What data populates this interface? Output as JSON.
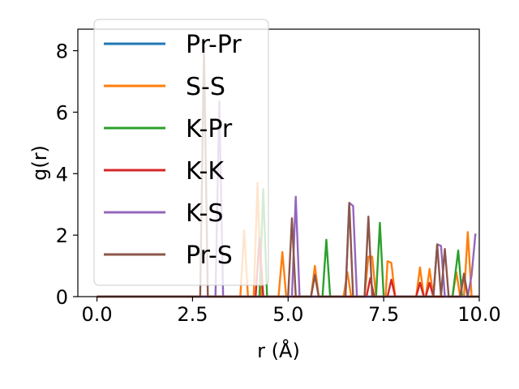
{
  "chart_data": {
    "type": "line",
    "xlabel": "r (Å)",
    "ylabel": "g(r)",
    "xlim": [
      -0.5,
      10.0
    ],
    "ylim": [
      0,
      8.7
    ],
    "xticks": [
      0.0,
      2.5,
      5.0,
      7.5,
      10.0
    ],
    "xtick_labels": [
      "0.0",
      "2.5",
      "5.0",
      "7.5",
      "10.0"
    ],
    "yticks": [
      0,
      2,
      4,
      6,
      8
    ],
    "ytick_labels": [
      "0",
      "2",
      "4",
      "6",
      "8"
    ],
    "grid": false,
    "legend_position": "upper-left",
    "series": [
      {
        "name": "Pr-Pr",
        "color": "#1f77b4",
        "x": [
          0.0,
          10.0
        ],
        "y": [
          0,
          0
        ]
      },
      {
        "name": "S-S",
        "color": "#ff7f0e",
        "x": [
          0.0,
          3.75,
          3.85,
          3.95,
          4.1,
          4.2,
          4.3,
          4.4,
          4.75,
          4.85,
          4.95,
          5.6,
          5.7,
          5.8,
          6.45,
          6.55,
          6.65,
          7.0,
          7.1,
          7.2,
          7.3,
          7.55,
          7.6,
          7.7,
          7.8,
          8.35,
          8.45,
          8.55,
          8.6,
          8.7,
          8.8,
          9.3,
          9.4,
          9.5,
          9.6,
          9.7,
          9.8,
          9.9
        ],
        "y": [
          0,
          0,
          2.15,
          0,
          0,
          3.7,
          0,
          0,
          0,
          1.45,
          0,
          0,
          1.0,
          0,
          0,
          0.8,
          0,
          0,
          1.3,
          1.3,
          0,
          0,
          1.15,
          1.1,
          0,
          0,
          0.95,
          0,
          0,
          0.9,
          0,
          0,
          0.8,
          0,
          0,
          2.1,
          0,
          0
        ]
      },
      {
        "name": "K-Pr",
        "color": "#2ca02c",
        "x": [
          0.0,
          4.25,
          4.35,
          4.45,
          5.9,
          6.0,
          6.1,
          7.3,
          7.4,
          7.5,
          9.3,
          9.45,
          9.55,
          9.9
        ],
        "y": [
          0,
          0,
          3.5,
          0,
          0,
          1.85,
          0,
          0,
          2.4,
          0,
          0,
          1.5,
          0,
          0
        ]
      },
      {
        "name": "K-K",
        "color": "#d62728",
        "x": [
          0.0,
          4.15,
          4.25,
          4.35,
          7.05,
          7.15,
          7.25,
          7.6,
          7.7,
          7.8,
          8.35,
          8.45,
          8.55,
          8.6,
          8.7,
          8.8,
          9.5,
          9.6,
          9.7,
          10.0
        ],
        "y": [
          0,
          0,
          1.9,
          0,
          0,
          0.6,
          0,
          0,
          0.55,
          0,
          0,
          0.45,
          0,
          0,
          0.45,
          0,
          0,
          0.7,
          0,
          0
        ]
      },
      {
        "name": "K-S",
        "color": "#9467bd",
        "x": [
          0.0,
          3.1,
          3.2,
          3.3,
          5.1,
          5.2,
          5.3,
          6.5,
          6.6,
          6.7,
          6.8,
          8.8,
          8.9,
          9.0,
          9.1,
          9.7,
          9.8,
          9.9
        ],
        "y": [
          0,
          0,
          6.35,
          0,
          0,
          3.25,
          0,
          0,
          3.05,
          2.95,
          0,
          0,
          1.7,
          1.65,
          0,
          0,
          0.7,
          2.05
        ]
      },
      {
        "name": "Pr-S",
        "color": "#8c564b",
        "x": [
          0.0,
          2.7,
          2.8,
          2.9,
          5.0,
          5.1,
          5.2,
          5.6,
          5.7,
          5.8,
          6.5,
          6.6,
          6.7,
          7.0,
          7.1,
          7.2,
          8.8,
          8.9,
          9.0,
          9.1,
          9.2,
          9.5,
          9.6,
          9.7,
          9.8,
          10.0
        ],
        "y": [
          0,
          0,
          8.1,
          0,
          0,
          2.55,
          0,
          0,
          0.7,
          0,
          0,
          3.05,
          0,
          0,
          2.6,
          0,
          0,
          1.7,
          0,
          1.55,
          0,
          0,
          0.75,
          0,
          0,
          0
        ]
      }
    ]
  }
}
